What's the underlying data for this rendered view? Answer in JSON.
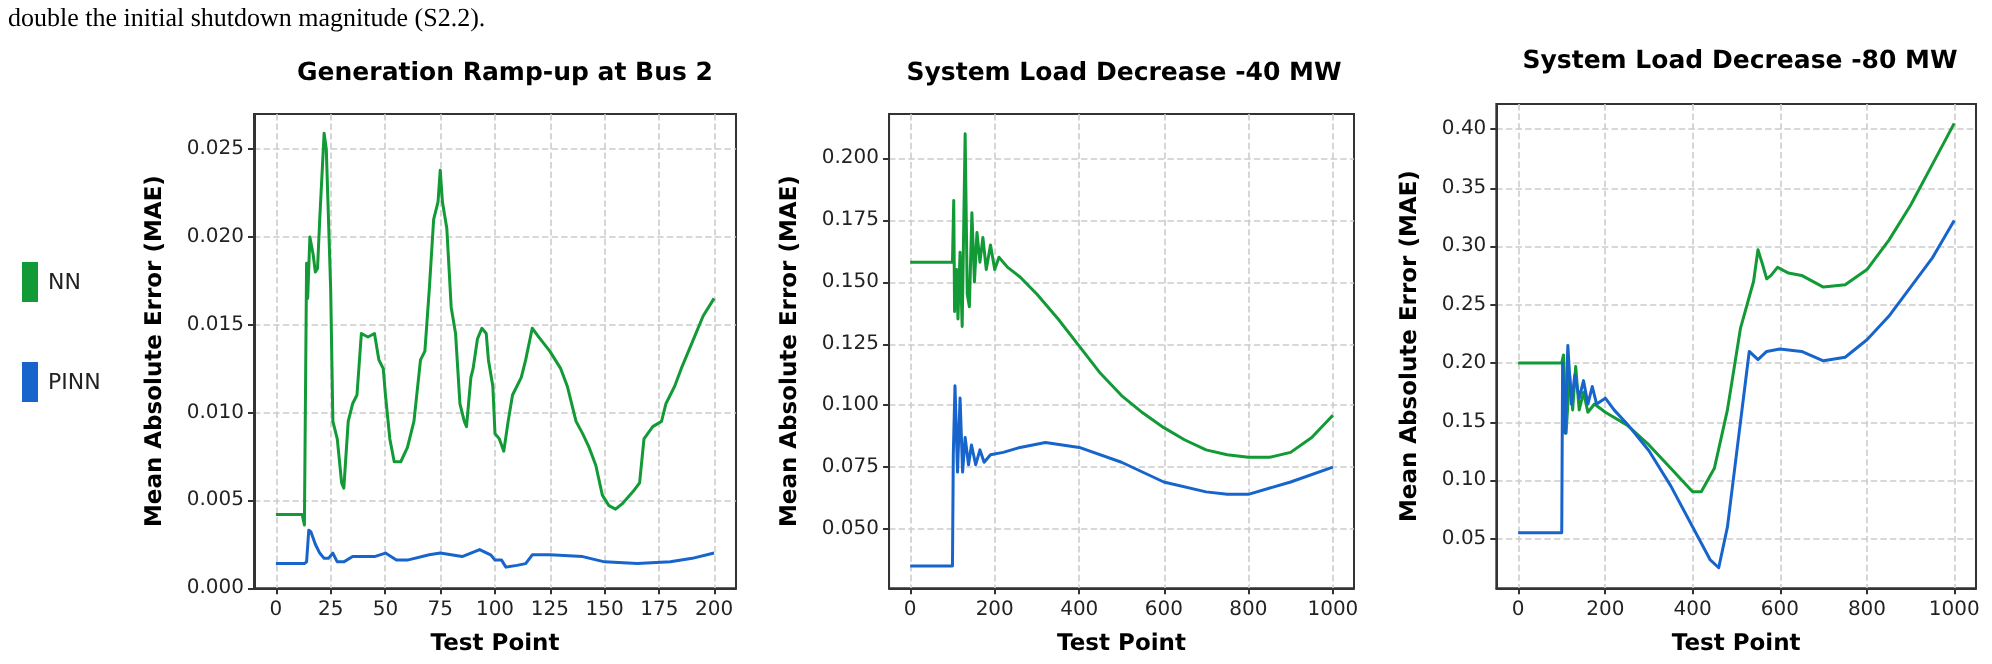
{
  "chart_data": [
    {
      "type": "line",
      "title": "Generation Ramp-up at Bus 2",
      "xlabel": "Test Point",
      "ylabel": "Mean Absolute Error (MAE)",
      "annotations": [
        "double the initial shutdown magnitude (S2.2)."
      ],
      "xlim": [
        -10,
        210
      ],
      "xticks": [
        0,
        25,
        50,
        75,
        100,
        125,
        150,
        175,
        200
      ],
      "ylim": [
        0,
        0.027
      ],
      "yticks": [
        {
          "value": 0,
          "label": "0.000"
        },
        {
          "value": 0.005,
          "label": "0.005"
        },
        {
          "value": 0.01,
          "label": "0.010"
        },
        {
          "value": 0.015,
          "label": "0.015"
        },
        {
          "value": 0.02,
          "label": "0.020"
        },
        {
          "value": 0.025,
          "label": "0.025"
        }
      ],
      "grid": true,
      "legend": "left",
      "series": [
        {
          "name": "NN",
          "color": "#119a35",
          "x": [
            0,
            12,
            13,
            14,
            14.5,
            15.5,
            17,
            18,
            19,
            20,
            22,
            23,
            25,
            26,
            28,
            30,
            31,
            33,
            35,
            37,
            39,
            42,
            45,
            47,
            49,
            50,
            52,
            54,
            57,
            60,
            63,
            66,
            68,
            70,
            72,
            74,
            75,
            76,
            78,
            80,
            82,
            84,
            86,
            87,
            89,
            90,
            92,
            94,
            96,
            97,
            99,
            100,
            102,
            104,
            106,
            108,
            110,
            112,
            114,
            117,
            120,
            125,
            130,
            133,
            137,
            140,
            143,
            146,
            149,
            152,
            155,
            158,
            163,
            166,
            168,
            172,
            176,
            178,
            182,
            185,
            190,
            195,
            200
          ],
          "values": [
            0.0042,
            0.0042,
            0.0036,
            0.0185,
            0.0165,
            0.02,
            0.019,
            0.018,
            0.0182,
            0.021,
            0.0259,
            0.025,
            0.017,
            0.0095,
            0.0085,
            0.006,
            0.0057,
            0.0095,
            0.0105,
            0.011,
            0.0145,
            0.0143,
            0.0145,
            0.013,
            0.0125,
            0.011,
            0.0085,
            0.0072,
            0.0072,
            0.008,
            0.0095,
            0.013,
            0.0135,
            0.017,
            0.021,
            0.022,
            0.0238,
            0.022,
            0.0205,
            0.016,
            0.0145,
            0.0105,
            0.0095,
            0.0092,
            0.012,
            0.0125,
            0.0142,
            0.0148,
            0.0145,
            0.013,
            0.0115,
            0.0088,
            0.0085,
            0.0078,
            0.0095,
            0.011,
            0.0115,
            0.012,
            0.013,
            0.0148,
            0.0143,
            0.0135,
            0.0125,
            0.0115,
            0.0095,
            0.0088,
            0.008,
            0.007,
            0.0053,
            0.0047,
            0.0045,
            0.0048,
            0.0055,
            0.006,
            0.0085,
            0.0092,
            0.0095,
            0.0105,
            0.0115,
            0.0125,
            0.014,
            0.0155,
            0.0165
          ]
        },
        {
          "name": "PINN",
          "color": "#1765cc",
          "x": [
            0,
            13,
            14,
            15,
            16,
            18,
            20,
            22,
            24,
            26,
            28,
            31,
            35,
            45,
            50,
            55,
            60,
            70,
            75,
            85,
            93,
            98,
            100,
            103,
            105,
            110,
            114,
            117,
            125,
            140,
            150,
            165,
            180,
            190,
            200
          ],
          "values": [
            0.0014,
            0.0014,
            0.0015,
            0.0033,
            0.0032,
            0.0025,
            0.002,
            0.0017,
            0.0017,
            0.002,
            0.0015,
            0.0015,
            0.0018,
            0.0018,
            0.002,
            0.0016,
            0.0016,
            0.0019,
            0.002,
            0.0018,
            0.0022,
            0.0019,
            0.0016,
            0.0016,
            0.0012,
            0.0013,
            0.0014,
            0.0019,
            0.0019,
            0.0018,
            0.0015,
            0.0014,
            0.0015,
            0.0017,
            0.002
          ]
        }
      ]
    },
    {
      "type": "line",
      "title": "System Load Decrease -40 MW",
      "xlabel": "Test Point",
      "ylabel": "Mean Absolute Error (MAE)",
      "xlim": [
        -50,
        1050
      ],
      "xticks": [
        0,
        200,
        400,
        600,
        800,
        1000
      ],
      "ylim": [
        0.026,
        0.218
      ],
      "yticks": [
        {
          "value": 0.05,
          "label": "0.050"
        },
        {
          "value": 0.075,
          "label": "0.075"
        },
        {
          "value": 0.1,
          "label": "0.100"
        },
        {
          "value": 0.125,
          "label": "0.125"
        },
        {
          "value": 0.15,
          "label": "0.150"
        },
        {
          "value": 0.175,
          "label": "0.175"
        },
        {
          "value": 0.2,
          "label": "0.200"
        }
      ],
      "grid": true,
      "series": [
        {
          "color": "#119a35",
          "x": [
            0,
            100,
            103,
            105,
            110,
            113,
            118,
            123,
            130,
            135,
            140,
            146,
            152,
            158,
            165,
            172,
            180,
            190,
            200,
            210,
            230,
            260,
            300,
            350,
            400,
            450,
            500,
            550,
            600,
            650,
            700,
            750,
            800,
            850,
            900,
            950,
            1000
          ],
          "values": [
            0.158,
            0.158,
            0.183,
            0.138,
            0.155,
            0.135,
            0.162,
            0.132,
            0.21,
            0.145,
            0.14,
            0.178,
            0.15,
            0.17,
            0.158,
            0.168,
            0.155,
            0.165,
            0.155,
            0.16,
            0.156,
            0.152,
            0.145,
            0.135,
            0.124,
            0.113,
            0.104,
            0.097,
            0.091,
            0.086,
            0.082,
            0.08,
            0.079,
            0.079,
            0.081,
            0.087,
            0.096
          ]
        },
        {
          "color": "#1765cc",
          "x": [
            0,
            100,
            102,
            106,
            112,
            118,
            124,
            130,
            138,
            145,
            155,
            165,
            175,
            190,
            220,
            260,
            320,
            400,
            500,
            600,
            700,
            750,
            800,
            900,
            1000
          ],
          "values": [
            0.035,
            0.035,
            0.08,
            0.108,
            0.073,
            0.103,
            0.073,
            0.087,
            0.076,
            0.084,
            0.076,
            0.082,
            0.077,
            0.08,
            0.081,
            0.083,
            0.085,
            0.083,
            0.077,
            0.069,
            0.065,
            0.064,
            0.064,
            0.069,
            0.075
          ]
        }
      ]
    },
    {
      "type": "line",
      "title": "System Load Decrease -80 MW",
      "xlabel": "Test Point",
      "ylabel": "Mean Absolute Error (MAE)",
      "xlim": [
        -50,
        1050
      ],
      "xticks": [
        0,
        200,
        400,
        600,
        800,
        1000
      ],
      "ylim": [
        0.0075,
        0.4216
      ],
      "yticks": [
        {
          "value": 0.05,
          "label": "0.05"
        },
        {
          "value": 0.1,
          "label": "0.10"
        },
        {
          "value": 0.15,
          "label": "0.15"
        },
        {
          "value": 0.2,
          "label": "0.20"
        },
        {
          "value": 0.25,
          "label": "0.25"
        },
        {
          "value": 0.3,
          "label": "0.30"
        },
        {
          "value": 0.35,
          "label": "0.35"
        },
        {
          "value": 0.4,
          "label": "0.40"
        }
      ],
      "grid": true,
      "series": [
        {
          "color": "#119a35",
          "x": [
            0,
            100,
            104,
            110,
            118,
            125,
            132,
            140,
            150,
            160,
            175,
            200,
            250,
            300,
            350,
            400,
            420,
            450,
            480,
            510,
            540,
            550,
            560,
            570,
            580,
            595,
            620,
            650,
            700,
            750,
            800,
            850,
            900,
            950,
            1000
          ],
          "values": [
            0.2,
            0.2,
            0.207,
            0.14,
            0.19,
            0.16,
            0.197,
            0.16,
            0.175,
            0.158,
            0.165,
            0.158,
            0.147,
            0.13,
            0.11,
            0.09,
            0.09,
            0.11,
            0.16,
            0.23,
            0.27,
            0.297,
            0.285,
            0.272,
            0.275,
            0.282,
            0.277,
            0.275,
            0.265,
            0.267,
            0.28,
            0.305,
            0.335,
            0.37,
            0.405
          ]
        },
        {
          "color": "#1765cc",
          "x": [
            0,
            100,
            102,
            108,
            114,
            122,
            130,
            140,
            150,
            160,
            170,
            180,
            200,
            220,
            250,
            300,
            350,
            400,
            440,
            460,
            480,
            500,
            520,
            530,
            550,
            570,
            600,
            650,
            700,
            750,
            800,
            850,
            900,
            950,
            1000
          ],
          "values": [
            0.055,
            0.055,
            0.2,
            0.14,
            0.215,
            0.165,
            0.19,
            0.17,
            0.185,
            0.165,
            0.18,
            0.165,
            0.17,
            0.16,
            0.148,
            0.125,
            0.095,
            0.06,
            0.032,
            0.025,
            0.06,
            0.12,
            0.18,
            0.21,
            0.203,
            0.21,
            0.212,
            0.21,
            0.202,
            0.205,
            0.22,
            0.24,
            0.265,
            0.29,
            0.322
          ]
        }
      ]
    }
  ]
}
